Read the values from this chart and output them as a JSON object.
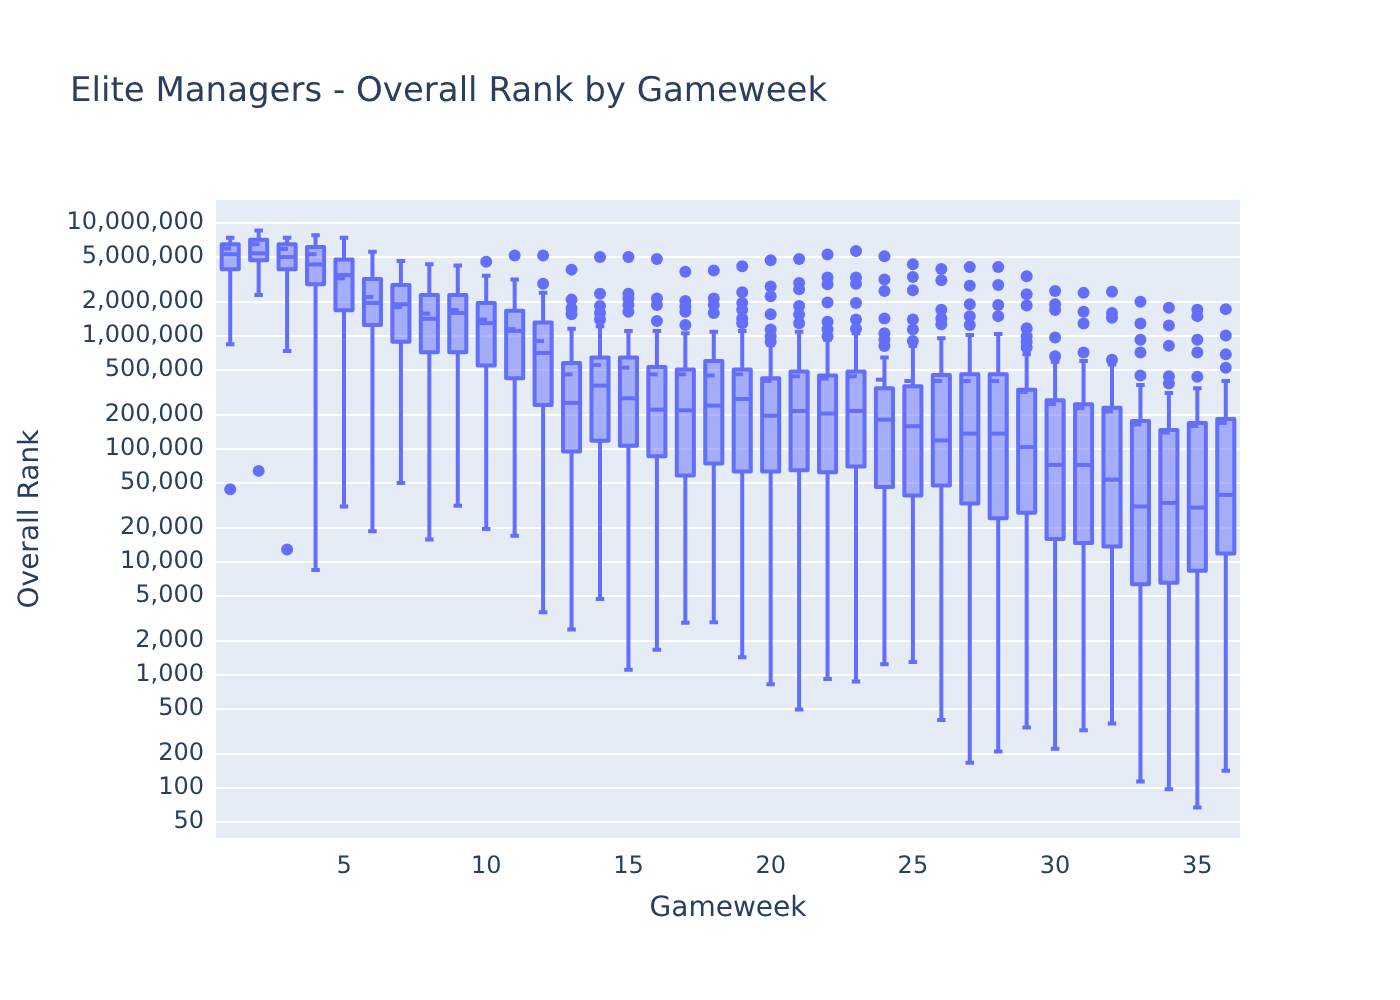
{
  "chart_data": {
    "type": "box",
    "title": "Elite Managers - Overall Rank by Gameweek",
    "xlabel": "Gameweek",
    "ylabel": "Overall Rank",
    "x": [
      1,
      2,
      3,
      4,
      5,
      6,
      7,
      8,
      9,
      10,
      11,
      12,
      13,
      14,
      15,
      16,
      17,
      18,
      19,
      20,
      21,
      22,
      23,
      24,
      25,
      26,
      27,
      28,
      29,
      30,
      31,
      32,
      33,
      34,
      35,
      36
    ],
    "xlim": [
      0.5,
      36.5
    ],
    "xticks": [
      5,
      10,
      15,
      20,
      25,
      30,
      35
    ],
    "ylim": [
      36,
      16000000
    ],
    "yticks": [
      50,
      100,
      200,
      500,
      {
        "value": 1000,
        "label": "1,000"
      },
      {
        "value": 2000,
        "label": "2,000"
      },
      {
        "value": 5000,
        "label": "5,000"
      },
      {
        "value": 10000,
        "label": "10,000"
      },
      {
        "value": 20000,
        "label": "20,000"
      },
      {
        "value": 50000,
        "label": "50,000"
      },
      {
        "value": 100000,
        "label": "100,000"
      },
      {
        "value": 200000,
        "label": "200,000"
      },
      {
        "value": 500000,
        "label": "500,000"
      },
      {
        "value": 1000000,
        "label": "1,000,000"
      },
      {
        "value": 2000000,
        "label": "2,000,000"
      },
      {
        "value": 5000000,
        "label": "5,000,000"
      },
      {
        "value": 10000000,
        "label": "10,000,000"
      }
    ],
    "log": "y",
    "grid": "y",
    "color": "#636efa",
    "boxes": [
      {
        "low": 845000,
        "q1": 3900000,
        "median": 5300000,
        "q3": 6500000,
        "high": 7400000,
        "mean": 5950000,
        "outliers": [
          44000
        ]
      },
      {
        "low": 2310000,
        "q1": 4680000,
        "median": 5400000,
        "q3": 7100000,
        "high": 8600000,
        "mean": 6500000,
        "outliers": [
          64000
        ]
      },
      {
        "low": 737000,
        "q1": 3900000,
        "median": 5000000,
        "q3": 6500000,
        "high": 7400000,
        "mean": 5900000,
        "outliers": [
          12900
        ]
      },
      {
        "low": 8500,
        "q1": 2870000,
        "median": 4300000,
        "q3": 6140000,
        "high": 7800000,
        "mean": 5300000
      },
      {
        "low": 31000,
        "q1": 1690000,
        "median": 3460000,
        "q3": 4750000,
        "high": 7400000,
        "mean": 3240000
      },
      {
        "low": 18700,
        "q1": 1250000,
        "median": 1960000,
        "q3": 3200000,
        "high": 5580000,
        "mean": 2220000
      },
      {
        "low": 50000,
        "q1": 891000,
        "median": 1910000,
        "q3": 2830000,
        "high": 4610000,
        "mean": 1800000
      },
      {
        "low": 15800,
        "q1": 718000,
        "median": 1420000,
        "q3": 2310000,
        "high": 4310000,
        "mean": 1580000
      },
      {
        "low": 31500,
        "q1": 718000,
        "median": 1600000,
        "q3": 2310000,
        "high": 4210000,
        "mean": 1700000
      },
      {
        "low": 19600,
        "q1": 547000,
        "median": 1300000,
        "q3": 1960000,
        "high": 3420000,
        "mean": 1400000,
        "outliers": [
          4540000
        ]
      },
      {
        "low": 17100,
        "q1": 422000,
        "median": 1110000,
        "q3": 1670000,
        "high": 3160000,
        "mean": 1150000,
        "outliers": [
          5150000
        ]
      },
      {
        "low": 3590,
        "q1": 245000,
        "median": 708000,
        "q3": 1320000,
        "high": 2410000,
        "mean": 904000,
        "outliers": [
          5150000,
          2900000
        ]
      },
      {
        "low": 2520,
        "q1": 94900,
        "median": 256000,
        "q3": 578000,
        "high": 1160000,
        "mean": 458000,
        "outliers": [
          3870000,
          2100000,
          1760000,
          1560000
        ]
      },
      {
        "low": 4710,
        "q1": 118000,
        "median": 364000,
        "q3": 645000,
        "high": 1220000,
        "mean": 554000,
        "outliers": [
          5000000,
          2370000,
          1840000,
          1600000,
          1400000
        ]
      },
      {
        "low": 1110,
        "q1": 107000,
        "median": 281000,
        "q3": 645000,
        "high": 1110000,
        "mean": 525000,
        "outliers": [
          5000000,
          2370000,
          2150000,
          1880000,
          1640000
        ]
      },
      {
        "low": 1670,
        "q1": 86300,
        "median": 223000,
        "q3": 531000,
        "high": 1110000,
        "mean": 458000,
        "outliers": [
          4800000,
          2150000,
          1880000,
          1360000
        ]
      },
      {
        "low": 2890,
        "q1": 58200,
        "median": 220000,
        "q3": 505000,
        "high": 1060000,
        "mean": 458000,
        "outliers": [
          3710000,
          2040000,
          1830000,
          1640000,
          1250000
        ]
      },
      {
        "low": 2920,
        "q1": 74300,
        "median": 242000,
        "q3": 602000,
        "high": 1090000,
        "mean": 447000,
        "outliers": [
          3800000,
          2150000,
          1880000,
          1600000
        ]
      },
      {
        "low": 1430,
        "q1": 63100,
        "median": 277000,
        "q3": 505000,
        "high": 1110000,
        "mean": 458000,
        "outliers": [
          4140000,
          2440000,
          1960000,
          1710000,
          1430000,
          1300000
        ]
      },
      {
        "low": 828,
        "q1": 63100,
        "median": 197000,
        "q3": 422000,
        "high": 832000,
        "mean": 400000,
        "outliers": [
          4680000,
          2750000,
          2250000,
          1560000,
          1140000,
          995000,
          891000
        ]
      },
      {
        "low": 494,
        "q1": 64900,
        "median": 217000,
        "q3": 484000,
        "high": 1090000,
        "mean": 440000,
        "outliers": [
          4800000,
          2940000,
          2600000,
          1840000,
          1550000,
          1300000
        ]
      },
      {
        "low": 920,
        "q1": 62200,
        "median": 206000,
        "q3": 447000,
        "high": 929000,
        "mean": 420000,
        "outliers": [
          5280000,
          3290000,
          2870000,
          1980000,
          1340000,
          1150000,
          995000
        ]
      },
      {
        "low": 875,
        "q1": 70000,
        "median": 217000,
        "q3": 484000,
        "high": 1060000,
        "mean": 440000,
        "outliers": [
          5660000,
          3290000,
          2900000,
          1960000,
          1400000,
          1160000
        ]
      },
      {
        "low": 1240,
        "q1": 46100,
        "median": 182000,
        "q3": 344000,
        "high": 645000,
        "mean": 411000,
        "outliers": [
          5080000,
          3160000,
          2500000,
          1430000,
          1060000,
          929000,
          816000
        ]
      },
      {
        "low": 1300,
        "q1": 38700,
        "median": 159000,
        "q3": 359000,
        "high": 816000,
        "mean": 400000,
        "outliers": [
          4310000,
          3330000,
          2540000,
          1400000,
          1140000,
          904000
        ]
      },
      {
        "low": 398,
        "q1": 47400,
        "median": 119000,
        "q3": 452000,
        "high": 955000,
        "mean": 400000,
        "outliers": [
          3920000,
          3110000,
          1710000,
          1430000,
          1270000
        ]
      },
      {
        "low": 167,
        "q1": 32900,
        "median": 137000,
        "q3": 458000,
        "high": 1020000,
        "mean": 400000,
        "outliers": [
          4080000,
          2790000,
          1910000,
          1500000,
          1250000
        ]
      },
      {
        "low": 210,
        "q1": 24400,
        "median": 137000,
        "q3": 458000,
        "high": 1040000,
        "mean": 400000,
        "outliers": [
          4080000,
          2830000,
          1880000,
          1500000
        ]
      },
      {
        "low": 343,
        "q1": 27200,
        "median": 104000,
        "q3": 335000,
        "high": 688000,
        "mean": 320000,
        "outliers": [
          3380000,
          2340000,
          1860000,
          1170000,
          995000,
          890000,
          790000
        ]
      },
      {
        "low": 222,
        "q1": 16000,
        "median": 72300,
        "q3": 270000,
        "high": 593000,
        "mean": 250000,
        "outliers": [
          2500000,
          1910000,
          1700000,
          969000,
          662000
        ]
      },
      {
        "low": 324,
        "q1": 14700,
        "median": 72300,
        "q3": 249000,
        "high": 602000,
        "mean": 230000,
        "outliers": [
          2410000,
          1640000,
          1290000,
          716000
        ]
      },
      {
        "low": 372,
        "q1": 13700,
        "median": 53600,
        "q3": 232000,
        "high": 561000,
        "mean": 215000,
        "outliers": [
          2470000,
          1600000,
          1450000,
          616000
        ]
      },
      {
        "low": 114,
        "q1": 6360,
        "median": 31000,
        "q3": 177000,
        "high": 369000,
        "mean": 165000,
        "outliers": [
          2010000,
          1290000,
          929000,
          716000,
          447000
        ]
      },
      {
        "low": 97,
        "q1": 6530,
        "median": 33300,
        "q3": 147000,
        "high": 313000,
        "mean": 140000,
        "outliers": [
          1780000,
          1240000,
          822000,
          441000,
          380000
        ]
      },
      {
        "low": 67,
        "q1": 8340,
        "median": 30300,
        "q3": 170000,
        "high": 345000,
        "mean": 160000,
        "outliers": [
          1710000,
          1500000,
          929000,
          716000,
          435000
        ]
      },
      {
        "low": 142,
        "q1": 11900,
        "median": 39200,
        "q3": 184000,
        "high": 400000,
        "mean": 170000,
        "outliers": [
          1730000,
          1010000,
          688000,
          525000
        ]
      }
    ]
  }
}
